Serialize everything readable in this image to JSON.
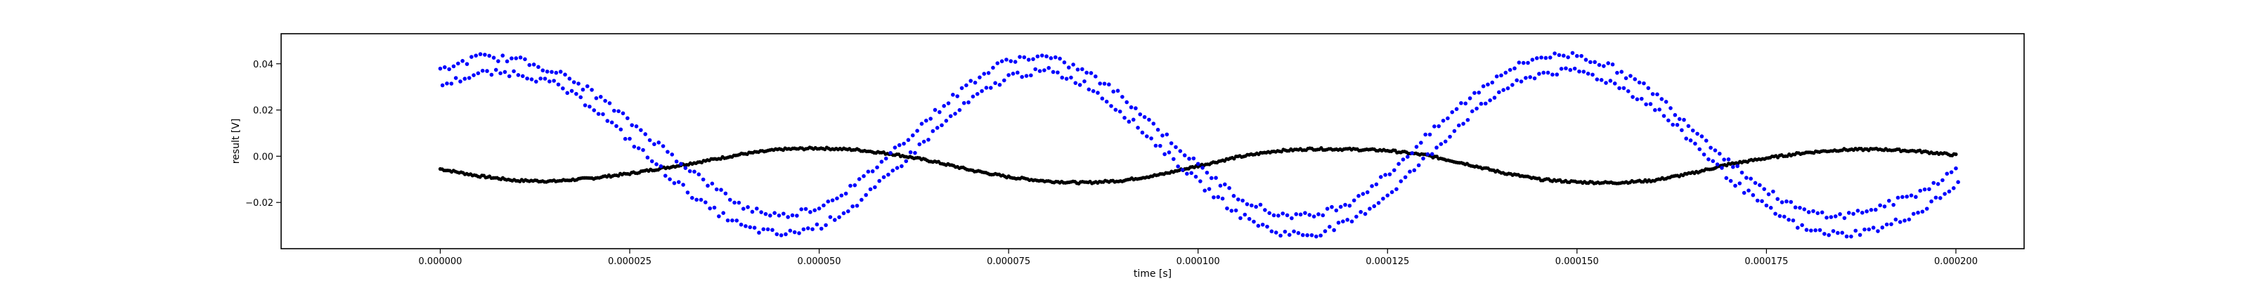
{
  "chart_data": {
    "type": "scatter",
    "title": "",
    "xlabel": "time [s]",
    "ylabel": "result [V]",
    "xlim": [
      -2.1e-05,
      0.000209
    ],
    "ylim": [
      -0.04,
      0.053
    ],
    "xticks": [
      0.0,
      2.5e-05,
      5e-05,
      7.5e-05,
      0.0001,
      0.000125,
      0.00015,
      0.000175,
      0.0002
    ],
    "xtick_labels": [
      "0.000000",
      "0.000025",
      "0.000050",
      "0.000075",
      "0.000100",
      "0.000125",
      "0.000150",
      "0.000175",
      "0.000200"
    ],
    "yticks": [
      -0.02,
      0.0,
      0.02,
      0.04
    ],
    "ytick_labels": [
      "−0.02",
      "0.00",
      "0.02",
      "0.04"
    ],
    "grid": false,
    "legend": "none",
    "series": [
      {
        "color": "#0000ff",
        "marker": "dot",
        "x": [
          0.0,
          5e-06,
          1e-05,
          1.5e-05,
          2e-05,
          2.5e-05,
          3e-05,
          3.5e-05,
          4e-05,
          4.5e-05,
          5e-05,
          5.5e-05,
          6e-05,
          6.5e-05,
          7e-05,
          7.5e-05,
          8e-05,
          8.5e-05,
          9e-05,
          9.5e-05,
          0.0001,
          0.000105,
          0.00011,
          0.000115,
          0.00012,
          0.000125,
          0.00013,
          0.000135,
          0.00014,
          0.000145,
          0.00015,
          0.000155,
          0.00016,
          0.000165,
          0.00017,
          0.000175,
          0.00018,
          0.000185,
          0.00019,
          0.000195,
          0.0002
        ],
        "y_upper": [
          0.037,
          0.043,
          0.042,
          0.037,
          0.028,
          0.015,
          0.002,
          -0.011,
          -0.022,
          -0.026,
          -0.022,
          -0.012,
          0.003,
          0.018,
          0.032,
          0.042,
          0.043,
          0.037,
          0.026,
          0.011,
          -0.004,
          -0.017,
          -0.025,
          -0.026,
          -0.02,
          -0.008,
          0.008,
          0.023,
          0.036,
          0.043,
          0.044,
          0.038,
          0.028,
          0.013,
          -0.002,
          -0.015,
          -0.024,
          -0.026,
          -0.022,
          -0.016,
          -0.006
        ],
        "y_lower": [
          0.031,
          0.036,
          0.036,
          0.031,
          0.021,
          0.006,
          -0.009,
          -0.022,
          -0.031,
          -0.034,
          -0.03,
          -0.02,
          -0.005,
          0.011,
          0.025,
          0.035,
          0.037,
          0.031,
          0.018,
          0.003,
          -0.012,
          -0.025,
          -0.033,
          -0.034,
          -0.028,
          -0.016,
          0.0,
          0.016,
          0.029,
          0.036,
          0.037,
          0.031,
          0.021,
          0.006,
          -0.01,
          -0.023,
          -0.032,
          -0.034,
          -0.031,
          -0.024,
          -0.012
        ]
      },
      {
        "color": "#000000",
        "marker": "dot",
        "x": [
          0.0,
          5e-06,
          1e-05,
          1.5e-05,
          2e-05,
          2.5e-05,
          3e-05,
          3.5e-05,
          4e-05,
          4.5e-05,
          5e-05,
          5.5e-05,
          6e-05,
          6.5e-05,
          7e-05,
          7.5e-05,
          8e-05,
          8.5e-05,
          9e-05,
          9.5e-05,
          0.0001,
          0.000105,
          0.00011,
          0.000115,
          0.00012,
          0.000125,
          0.00013,
          0.000135,
          0.00014,
          0.000145,
          0.00015,
          0.000155,
          0.00016,
          0.000165,
          0.00017,
          0.000175,
          0.00018,
          0.000185,
          0.00019,
          0.000195,
          0.0002
        ],
        "y": [
          -0.0055,
          -0.0085,
          -0.0105,
          -0.0108,
          -0.0095,
          -0.0075,
          -0.0048,
          -0.002,
          0.001,
          0.003,
          0.0035,
          0.0028,
          0.0008,
          -0.0022,
          -0.006,
          -0.009,
          -0.0108,
          -0.0115,
          -0.0105,
          -0.008,
          -0.0042,
          -0.0005,
          0.0022,
          0.0032,
          0.003,
          0.0025,
          0.0005,
          -0.003,
          -0.007,
          -0.01,
          -0.0112,
          -0.0115,
          -0.0105,
          -0.0075,
          -0.0035,
          -0.0008,
          0.0015,
          0.0028,
          0.003,
          0.0022,
          0.0005
        ]
      }
    ]
  }
}
